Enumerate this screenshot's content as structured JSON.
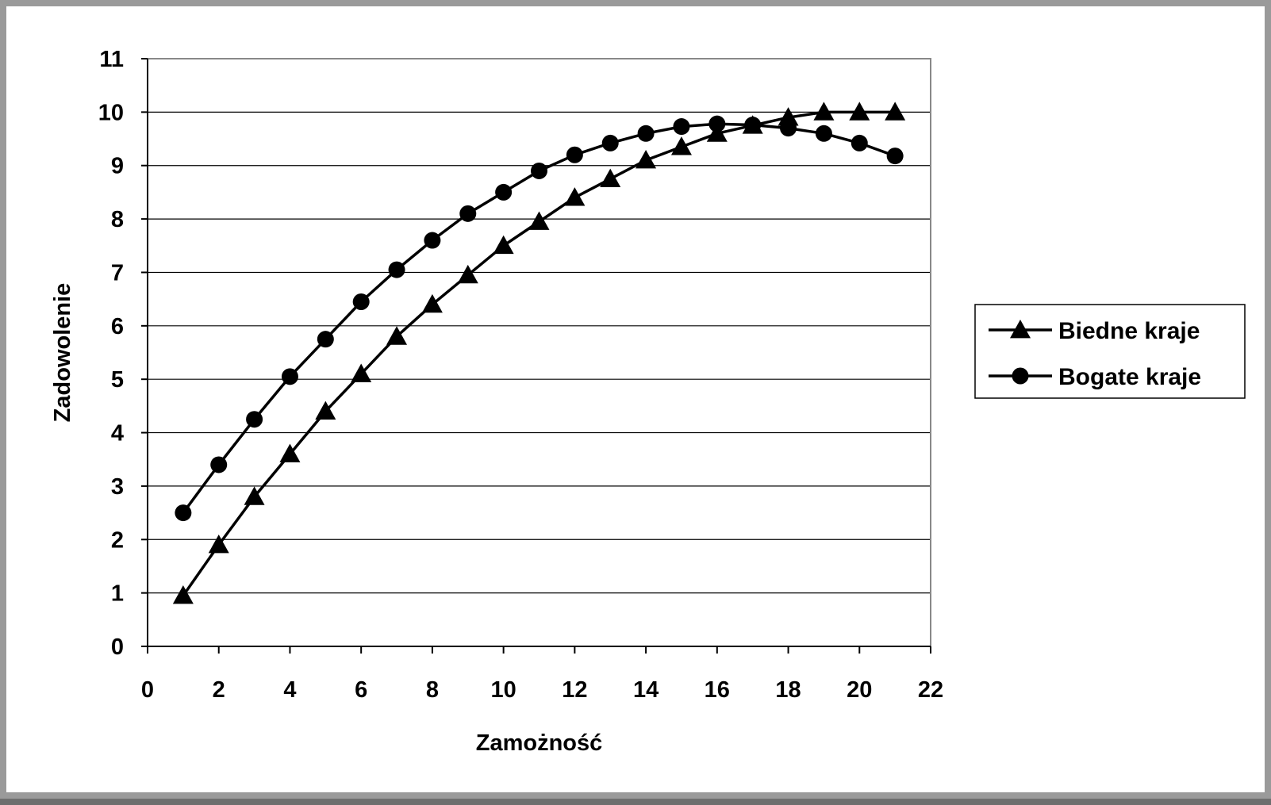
{
  "chart_data": {
    "type": "line",
    "title": "",
    "xlabel": "Zamożność",
    "ylabel": "Zadowolenie",
    "xlim": [
      0,
      22
    ],
    "ylim": [
      0,
      11
    ],
    "x_ticks": [
      0,
      2,
      4,
      6,
      8,
      10,
      12,
      14,
      16,
      18,
      20,
      22
    ],
    "y_ticks": [
      0,
      1,
      2,
      3,
      4,
      5,
      6,
      7,
      8,
      9,
      10,
      11
    ],
    "grid": "horizontal",
    "legend_position": "right",
    "x": [
      1,
      2,
      3,
      4,
      5,
      6,
      7,
      8,
      9,
      10,
      11,
      12,
      13,
      14,
      15,
      16,
      17,
      18,
      19,
      20,
      21
    ],
    "series": [
      {
        "name": "Biedne kraje",
        "marker": "triangle",
        "color": "#000000",
        "values": [
          0.95,
          1.9,
          2.8,
          3.6,
          4.4,
          5.1,
          5.8,
          6.4,
          6.95,
          7.5,
          7.95,
          8.4,
          8.75,
          9.1,
          9.35,
          9.6,
          9.75,
          9.9,
          10.0,
          10.0,
          10.0
        ]
      },
      {
        "name": "Bogate kraje",
        "marker": "circle",
        "color": "#000000",
        "values": [
          2.5,
          3.4,
          4.25,
          5.05,
          5.75,
          6.45,
          7.05,
          7.6,
          8.1,
          8.5,
          8.9,
          9.2,
          9.42,
          9.6,
          9.73,
          9.78,
          9.76,
          9.7,
          9.6,
          9.42,
          9.18
        ]
      }
    ]
  }
}
